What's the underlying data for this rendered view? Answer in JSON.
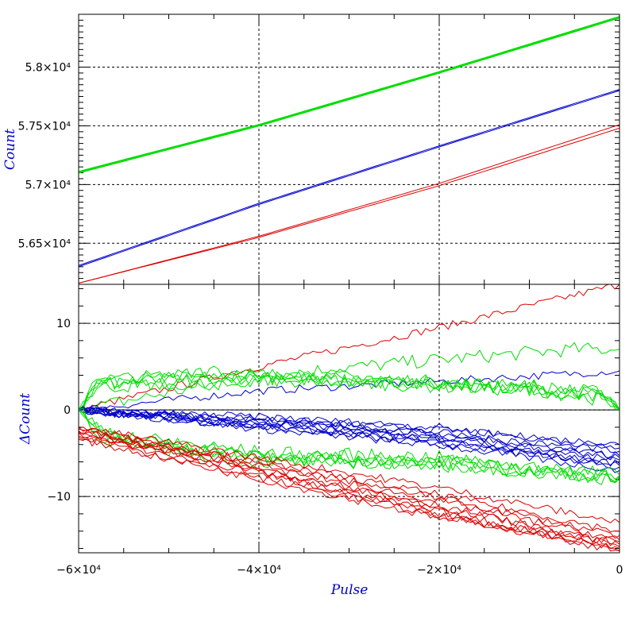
{
  "colors": {
    "red": "#dd0000",
    "blue": "#0000cc",
    "green": "#00dd00",
    "frame": "#000000",
    "grid": "#000000",
    "title": "#0000cc"
  },
  "chart_data": [
    {
      "type": "line",
      "panel": "top",
      "xlabel": "",
      "ylabel": "Count",
      "xlim": [
        -60000,
        0
      ],
      "ylim": [
        56150,
        58450
      ],
      "grid": true,
      "x_ticks": [
        {
          "value": -60000,
          "label": ""
        },
        {
          "value": -40000,
          "label": ""
        },
        {
          "value": -20000,
          "label": ""
        },
        {
          "value": 0,
          "label": ""
        }
      ],
      "y_ticks": [
        {
          "value": 56500,
          "label": "5.65×10⁴"
        },
        {
          "value": 57000,
          "label": "5.7×10⁴"
        },
        {
          "value": 57500,
          "label": "5.75×10⁴"
        },
        {
          "value": 58000,
          "label": "5.8×10⁴"
        }
      ],
      "series": [
        {
          "color": "green",
          "x": [
            -60000,
            -40000,
            -20000,
            0
          ],
          "y": [
            57100,
            57500,
            57950,
            58420
          ]
        },
        {
          "color": "green",
          "x": [
            -60000,
            -40000,
            -20000,
            0
          ],
          "y": [
            57110,
            57510,
            57960,
            58430
          ]
        },
        {
          "color": "blue",
          "x": [
            -60000,
            -40000,
            -20000,
            0
          ],
          "y": [
            56300,
            56830,
            57320,
            57800
          ]
        },
        {
          "color": "blue",
          "x": [
            -60000,
            -40000,
            -20000,
            0
          ],
          "y": [
            56310,
            56840,
            57330,
            57810
          ]
        },
        {
          "color": "red",
          "x": [
            -60000,
            -40000,
            -20000,
            0
          ],
          "y": [
            56160,
            56550,
            56990,
            57480
          ]
        },
        {
          "color": "red",
          "x": [
            -60000,
            -40000,
            -20000,
            0
          ],
          "y": [
            56160,
            56560,
            57010,
            57510
          ]
        }
      ]
    },
    {
      "type": "line",
      "panel": "bottom",
      "xlabel": "Pulse",
      "ylabel": "ΔCount",
      "xlim": [
        -60000,
        0
      ],
      "ylim": [
        -16.5,
        14.5
      ],
      "grid": true,
      "zero_line": true,
      "x_ticks": [
        {
          "value": -60000,
          "label": "−6×10⁴"
        },
        {
          "value": -40000,
          "label": "−4×10⁴"
        },
        {
          "value": -20000,
          "label": "−2×10⁴"
        },
        {
          "value": 0,
          "label": "0"
        }
      ],
      "y_ticks": [
        {
          "value": -10,
          "label": "−10"
        },
        {
          "value": 0,
          "label": "0"
        },
        {
          "value": 10,
          "label": "10"
        }
      ],
      "series": [
        {
          "color": "red",
          "x": [
            -60000,
            -40000,
            -20000,
            0
          ],
          "y": [
            0,
            5,
            9.5,
            14.5
          ]
        },
        {
          "color": "green",
          "x": [
            -60000,
            -40000,
            -20000,
            -5000,
            0
          ],
          "y": [
            0,
            4,
            5.8,
            7,
            7
          ]
        },
        {
          "color": "blue",
          "x": [
            -60000,
            -40000,
            -20000,
            0
          ],
          "y": [
            0,
            2.2,
            3.3,
            4.5
          ]
        },
        {
          "color": "green",
          "x": [
            -60000,
            -58000,
            -45000,
            -30000,
            -20000,
            -10000,
            -2000,
            0
          ],
          "y": [
            0,
            3,
            3.8,
            3.5,
            3,
            2.5,
            1.5,
            0
          ]
        },
        {
          "color": "green",
          "x": [
            -60000,
            -58000,
            -45000,
            -30000,
            -20000,
            -10000,
            -2000,
            0
          ],
          "y": [
            0,
            3.5,
            4.2,
            3.8,
            3.2,
            2.7,
            2,
            0
          ]
        },
        {
          "color": "green",
          "x": [
            -60000,
            -58000,
            -45000,
            -30000,
            -20000,
            -10000,
            -2000,
            0
          ],
          "y": [
            0,
            2.6,
            3.4,
            3.2,
            2.7,
            2.3,
            1.8,
            0
          ]
        },
        {
          "color": "green",
          "x": [
            -60000,
            -58000,
            -45000,
            -30000,
            -20000,
            -10000,
            -2000,
            0
          ],
          "y": [
            0,
            3.2,
            3.0,
            3.6,
            3.0,
            2.8,
            1.6,
            0
          ]
        },
        {
          "color": "green",
          "x": [
            -60000,
            -58000,
            -45000,
            -30000,
            -20000,
            -10000,
            -2000,
            0
          ],
          "y": [
            0,
            2.8,
            4.5,
            3.3,
            2.9,
            2.4,
            1.2,
            0
          ]
        },
        {
          "color": "blue",
          "x": [
            -60000,
            -40000,
            -20000,
            0
          ],
          "y": [
            0,
            -1,
            -2.3,
            -4
          ]
        },
        {
          "color": "blue",
          "x": [
            -60000,
            -40000,
            -20000,
            0
          ],
          "y": [
            0,
            -1.3,
            -2.8,
            -4.8
          ]
        },
        {
          "color": "blue",
          "x": [
            -60000,
            -40000,
            -20000,
            0
          ],
          "y": [
            0,
            -1.6,
            -3.2,
            -5.3
          ]
        },
        {
          "color": "blue",
          "x": [
            -60000,
            -40000,
            -20000,
            0
          ],
          "y": [
            0,
            -1.8,
            -3.5,
            -5.8
          ]
        },
        {
          "color": "blue",
          "x": [
            -60000,
            -40000,
            -20000,
            0
          ],
          "y": [
            0,
            -2,
            -3.8,
            -6.2
          ]
        },
        {
          "color": "blue",
          "x": [
            -60000,
            -40000,
            -20000,
            0
          ],
          "y": [
            0,
            -1.4,
            -3,
            -6.6
          ]
        },
        {
          "color": "blue",
          "x": [
            -60000,
            -40000,
            -20000,
            0
          ],
          "y": [
            0,
            -2.2,
            -4.1,
            -7
          ]
        },
        {
          "color": "blue",
          "x": [
            -60000,
            -40000,
            -20000,
            0
          ],
          "y": [
            0,
            -1.1,
            -2.6,
            -5.5
          ]
        },
        {
          "color": "blue",
          "x": [
            -60000,
            -40000,
            -20000,
            0
          ],
          "y": [
            0,
            -1.9,
            -3.9,
            -6.4
          ]
        },
        {
          "color": "blue",
          "x": [
            -60000,
            -40000,
            -20000,
            0
          ],
          "y": [
            0,
            -0.8,
            -2,
            -4.4
          ]
        },
        {
          "color": "green",
          "x": [
            -60000,
            -57000,
            -40000,
            -20000,
            -10000,
            0
          ],
          "y": [
            0,
            -3,
            -5.2,
            -5.8,
            -6.5,
            -7.5
          ]
        },
        {
          "color": "green",
          "x": [
            -60000,
            -57000,
            -40000,
            -20000,
            -10000,
            0
          ],
          "y": [
            0,
            -3.4,
            -5.6,
            -6.2,
            -7,
            -7.8
          ]
        },
        {
          "color": "green",
          "x": [
            -60000,
            -57000,
            -40000,
            -20000,
            -10000,
            0
          ],
          "y": [
            0,
            -2.8,
            -4.9,
            -5.5,
            -6.8,
            -7.6
          ]
        },
        {
          "color": "green",
          "x": [
            -60000,
            -57000,
            -40000,
            -20000,
            -10000,
            0
          ],
          "y": [
            0,
            -3.6,
            -6,
            -6,
            -7.2,
            -8
          ]
        },
        {
          "color": "green",
          "x": [
            -60000,
            -57000,
            -40000,
            -20000,
            -10000,
            0
          ],
          "y": [
            0,
            -3.1,
            -5.4,
            -6.4,
            -6.9,
            -7.7
          ]
        },
        {
          "color": "red",
          "x": [
            -60000,
            -40000,
            -20000,
            0
          ],
          "y": [
            -2,
            -5.5,
            -9,
            -13
          ]
        },
        {
          "color": "red",
          "x": [
            -60000,
            -40000,
            -20000,
            0
          ],
          "y": [
            -2.2,
            -6,
            -9.8,
            -14
          ]
        },
        {
          "color": "red",
          "x": [
            -60000,
            -40000,
            -20000,
            0
          ],
          "y": [
            -2.5,
            -6.5,
            -10.5,
            -15
          ]
        },
        {
          "color": "red",
          "x": [
            -60000,
            -40000,
            -20000,
            0
          ],
          "y": [
            -2.8,
            -7,
            -11.2,
            -15.5
          ]
        },
        {
          "color": "red",
          "x": [
            -60000,
            -40000,
            -20000,
            0
          ],
          "y": [
            -3,
            -7.4,
            -11.8,
            -16
          ]
        },
        {
          "color": "red",
          "x": [
            -60000,
            -40000,
            -20000,
            0
          ],
          "y": [
            -3.2,
            -7.8,
            -12.2,
            -16.2
          ]
        },
        {
          "color": "red",
          "x": [
            -60000,
            -40000,
            -20000,
            0
          ],
          "y": [
            -2.4,
            -6.8,
            -11,
            -15.8
          ]
        },
        {
          "color": "red",
          "x": [
            -60000,
            -40000,
            -20000,
            0
          ],
          "y": [
            -2.6,
            -7.2,
            -12,
            -16.3
          ]
        },
        {
          "color": "red",
          "x": [
            -60000,
            -40000,
            -20000,
            0
          ],
          "y": [
            -3.4,
            -8,
            -12.5,
            -15.2
          ]
        },
        {
          "color": "red",
          "x": [
            -60000,
            -40000,
            -20000,
            0
          ],
          "y": [
            -2.1,
            -6.2,
            -10.2,
            -14.5
          ]
        }
      ]
    }
  ]
}
